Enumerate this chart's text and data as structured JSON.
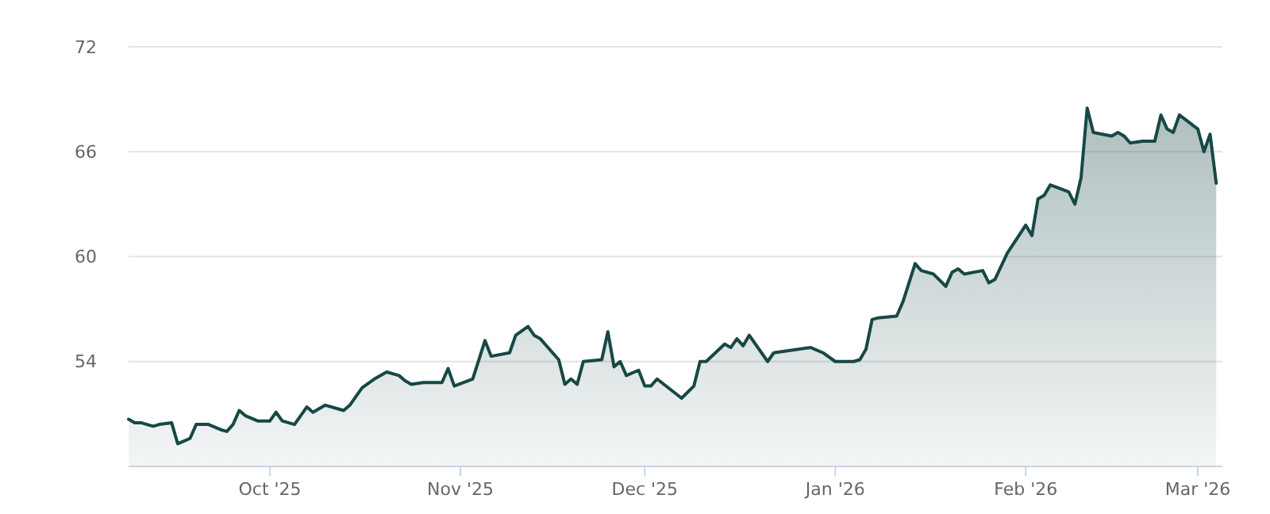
{
  "chart_data": {
    "type": "area",
    "grid": "y",
    "xlim": [
      "2025-09-08",
      "2026-03-05"
    ],
    "ylim": [
      48,
      72
    ],
    "yticks": [
      54,
      60,
      66,
      72
    ],
    "xticks": [
      {
        "value": "2025-10-01",
        "label": "Oct '25"
      },
      {
        "value": "2025-11-01",
        "label": "Nov '25"
      },
      {
        "value": "2025-12-01",
        "label": "Dec '25"
      },
      {
        "value": "2026-01-01",
        "label": "Jan '26"
      },
      {
        "value": "2026-02-01",
        "label": "Feb '26"
      },
      {
        "value": "2026-03-01",
        "label": "Mar '26"
      }
    ],
    "series": [
      {
        "color": "#174845",
        "x": [
          "2025-09-08",
          "2025-09-09",
          "2025-09-10",
          "2025-09-12",
          "2025-09-13",
          "2025-09-15",
          "2025-09-16",
          "2025-09-18",
          "2025-09-19",
          "2025-09-21",
          "2025-09-23",
          "2025-09-24",
          "2025-09-25",
          "2025-09-26",
          "2025-09-27",
          "2025-09-29",
          "2025-09-30",
          "2025-10-01",
          "2025-10-02",
          "2025-10-03",
          "2025-10-05",
          "2025-10-07",
          "2025-10-08",
          "2025-10-10",
          "2025-10-12",
          "2025-10-13",
          "2025-10-14",
          "2025-10-16",
          "2025-10-18",
          "2025-10-20",
          "2025-10-22",
          "2025-10-23",
          "2025-10-24",
          "2025-10-26",
          "2025-10-29",
          "2025-10-30",
          "2025-10-31",
          "2025-11-03",
          "2025-11-05",
          "2025-11-06",
          "2025-11-09",
          "2025-11-10",
          "2025-11-12",
          "2025-11-13",
          "2025-11-14",
          "2025-11-17",
          "2025-11-18",
          "2025-11-19",
          "2025-11-20",
          "2025-11-21",
          "2025-11-24",
          "2025-11-25",
          "2025-11-26",
          "2025-11-27",
          "2025-11-28",
          "2025-11-30",
          "2025-12-01",
          "2025-12-02",
          "2025-12-03",
          "2025-12-07",
          "2025-12-09",
          "2025-12-10",
          "2025-12-11",
          "2025-12-14",
          "2025-12-15",
          "2025-12-16",
          "2025-12-17",
          "2025-12-18",
          "2025-12-21",
          "2025-12-22",
          "2025-12-28",
          "2025-12-30",
          "2026-01-01",
          "2026-01-04",
          "2026-01-05",
          "2026-01-06",
          "2026-01-07",
          "2026-01-08",
          "2026-01-11",
          "2026-01-12",
          "2026-01-14",
          "2026-01-15",
          "2026-01-17",
          "2026-01-19",
          "2026-01-20",
          "2026-01-21",
          "2026-01-22",
          "2026-01-25",
          "2026-01-26",
          "2026-01-27",
          "2026-01-29",
          "2026-02-01",
          "2026-02-02",
          "2026-02-03",
          "2026-02-04",
          "2026-02-05",
          "2026-02-08",
          "2026-02-09",
          "2026-02-10",
          "2026-02-11",
          "2026-02-12",
          "2026-02-15",
          "2026-02-16",
          "2026-02-17",
          "2026-02-18",
          "2026-02-20",
          "2026-02-22",
          "2026-02-23",
          "2026-02-24",
          "2026-02-25",
          "2026-02-26",
          "2026-03-01",
          "2026-03-02",
          "2026-03-03",
          "2026-03-04"
        ],
        "values": [
          50.7,
          50.5,
          50.5,
          50.3,
          50.4,
          50.5,
          49.3,
          49.6,
          50.4,
          50.4,
          50.1,
          50.0,
          50.4,
          51.2,
          50.9,
          50.6,
          50.6,
          50.6,
          51.1,
          50.6,
          50.4,
          51.4,
          51.1,
          51.5,
          51.3,
          51.2,
          51.5,
          52.5,
          53.0,
          53.4,
          53.2,
          52.9,
          52.7,
          52.8,
          52.8,
          53.6,
          52.6,
          53.0,
          55.2,
          54.3,
          54.5,
          55.5,
          56.0,
          55.5,
          55.3,
          54.1,
          52.7,
          53.0,
          52.7,
          54.0,
          54.1,
          55.7,
          53.7,
          54.0,
          53.2,
          53.5,
          52.6,
          52.6,
          53.0,
          51.9,
          52.6,
          54.0,
          54.0,
          55.0,
          54.8,
          55.3,
          54.9,
          55.5,
          54.0,
          54.5,
          54.8,
          54.5,
          54.0,
          54.0,
          54.1,
          54.7,
          56.4,
          56.5,
          56.6,
          57.4,
          59.6,
          59.2,
          59.0,
          58.3,
          59.1,
          59.3,
          59.0,
          59.2,
          58.5,
          58.7,
          60.2,
          61.8,
          61.2,
          63.3,
          63.5,
          64.1,
          63.7,
          63.0,
          64.5,
          68.5,
          67.1,
          66.9,
          67.1,
          66.9,
          66.5,
          66.6,
          66.6,
          68.1,
          67.3,
          67.1,
          68.1,
          67.3,
          66.0,
          67.0,
          64.2
        ]
      }
    ]
  }
}
